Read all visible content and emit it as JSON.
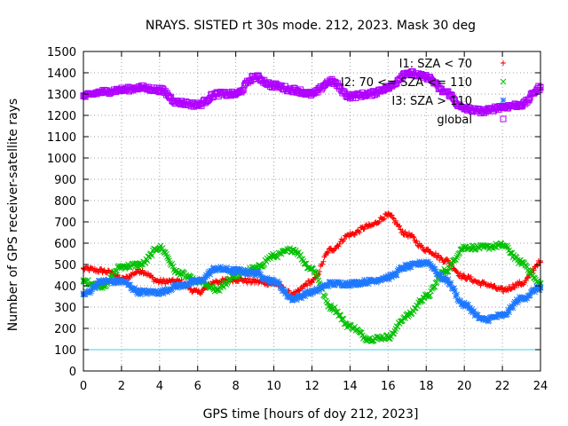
{
  "chart_data": {
    "type": "scatter",
    "title": "NRAYS. SISTED rt 30s mode. 212, 2023. Mask 30 deg",
    "xlabel": "GPS time [hours of doy 212, 2023]",
    "ylabel": "Number of GPS receiver-satellite rays",
    "xlim": [
      0,
      24
    ],
    "ylim": [
      0,
      1500
    ],
    "x_ticks": [
      0,
      2,
      4,
      6,
      8,
      10,
      12,
      14,
      16,
      18,
      20,
      22,
      24
    ],
    "y_ticks": [
      0,
      100,
      200,
      300,
      400,
      500,
      600,
      700,
      800,
      900,
      1000,
      1100,
      1200,
      1300,
      1400,
      1500
    ],
    "grid": true,
    "legend_position": "top-right",
    "threshold_line": {
      "value": 100,
      "color": "#40d0e0"
    },
    "series": [
      {
        "name": "I1: SZA < 70",
        "marker": "+",
        "color": "#ff0000",
        "points": [
          [
            0,
            480
          ],
          [
            1,
            470
          ],
          [
            1.5,
            460
          ],
          [
            2,
            430
          ],
          [
            3,
            470
          ],
          [
            4,
            420
          ],
          [
            5,
            420
          ],
          [
            6,
            370
          ],
          [
            7,
            420
          ],
          [
            8,
            430
          ],
          [
            9,
            420
          ],
          [
            10,
            410
          ],
          [
            11,
            360
          ],
          [
            12,
            420
          ],
          [
            13,
            570
          ],
          [
            14,
            640
          ],
          [
            15,
            680
          ],
          [
            16,
            730
          ],
          [
            17,
            640
          ],
          [
            18,
            570
          ],
          [
            19,
            520
          ],
          [
            20,
            440
          ],
          [
            21,
            410
          ],
          [
            22,
            380
          ],
          [
            23,
            410
          ],
          [
            24,
            510
          ]
        ]
      },
      {
        "name": "I2: 70 <= SZA <= 110",
        "marker": "x",
        "color": "#00c000",
        "points": [
          [
            0,
            420
          ],
          [
            1,
            400
          ],
          [
            2,
            490
          ],
          [
            3,
            500
          ],
          [
            4,
            580
          ],
          [
            5,
            460
          ],
          [
            6,
            420
          ],
          [
            7,
            380
          ],
          [
            8,
            450
          ],
          [
            9,
            480
          ],
          [
            10,
            540
          ],
          [
            11,
            570
          ],
          [
            12,
            480
          ],
          [
            13,
            300
          ],
          [
            14,
            210
          ],
          [
            15,
            150
          ],
          [
            16,
            160
          ],
          [
            17,
            260
          ],
          [
            18,
            350
          ],
          [
            19,
            470
          ],
          [
            20,
            580
          ],
          [
            21,
            580
          ],
          [
            22,
            590
          ],
          [
            23,
            510
          ],
          [
            24,
            410
          ]
        ]
      },
      {
        "name": "I3: SZA > 110",
        "marker": "*",
        "color": "#1e78ff",
        "points": [
          [
            0,
            360
          ],
          [
            1,
            420
          ],
          [
            2,
            420
          ],
          [
            3,
            370
          ],
          [
            4,
            370
          ],
          [
            5,
            400
          ],
          [
            6,
            420
          ],
          [
            7,
            480
          ],
          [
            8,
            470
          ],
          [
            9,
            460
          ],
          [
            10,
            420
          ],
          [
            11,
            340
          ],
          [
            12,
            370
          ],
          [
            13,
            410
          ],
          [
            14,
            410
          ],
          [
            15,
            420
          ],
          [
            16,
            440
          ],
          [
            17,
            490
          ],
          [
            18,
            510
          ],
          [
            19,
            430
          ],
          [
            20,
            310
          ],
          [
            21,
            240
          ],
          [
            22,
            260
          ],
          [
            23,
            340
          ],
          [
            24,
            390
          ]
        ]
      },
      {
        "name": "global",
        "marker": "square",
        "color": "#b000ff",
        "points": [
          [
            0,
            1290
          ],
          [
            1,
            1310
          ],
          [
            2,
            1320
          ],
          [
            3,
            1330
          ],
          [
            4,
            1320
          ],
          [
            5,
            1260
          ],
          [
            6,
            1250
          ],
          [
            7,
            1300
          ],
          [
            8,
            1300
          ],
          [
            9,
            1380
          ],
          [
            10,
            1340
          ],
          [
            11,
            1320
          ],
          [
            12,
            1300
          ],
          [
            13,
            1360
          ],
          [
            14,
            1290
          ],
          [
            15,
            1300
          ],
          [
            16,
            1330
          ],
          [
            17,
            1400
          ],
          [
            18,
            1380
          ],
          [
            19,
            1310
          ],
          [
            20,
            1230
          ],
          [
            21,
            1220
          ],
          [
            22,
            1240
          ],
          [
            23,
            1250
          ],
          [
            24,
            1330
          ]
        ]
      }
    ]
  }
}
